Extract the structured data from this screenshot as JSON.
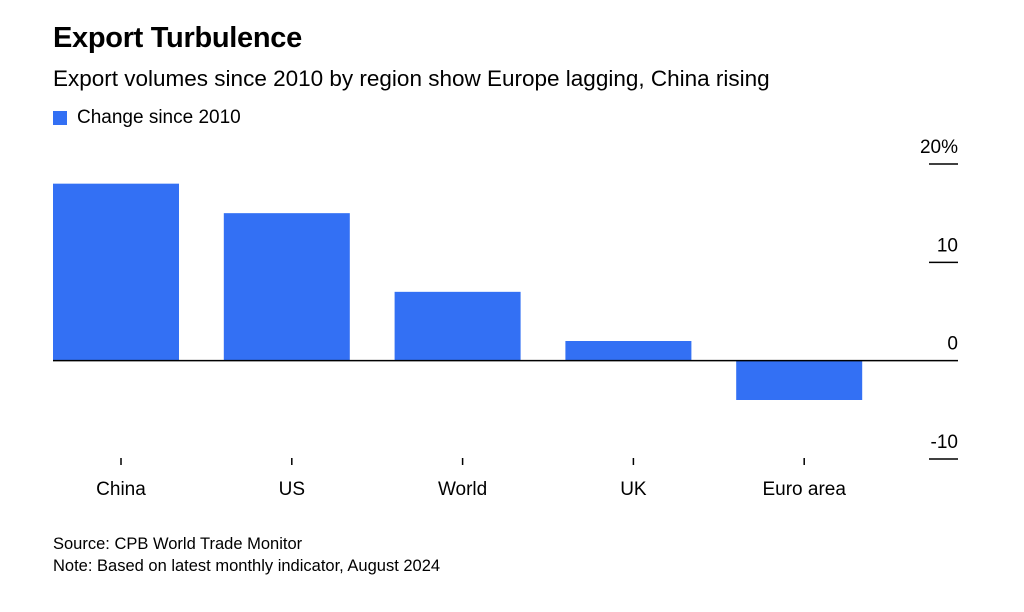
{
  "title": "Export Turbulence",
  "subtitle": "Export volumes since 2010 by region show Europe lagging, China rising",
  "legend": {
    "label": "Change since 2010"
  },
  "colors": {
    "bar": "#3370f4",
    "axis": "#000000",
    "text": "#000000"
  },
  "chart_data": {
    "type": "bar",
    "categories": [
      "China",
      "US",
      "World",
      "UK",
      "Euro area"
    ],
    "series": [
      {
        "name": "Change since 2010",
        "values": [
          18.0,
          15.0,
          7.0,
          2.0,
          -4.0
        ]
      }
    ],
    "ylim": [
      -10,
      20
    ],
    "yticks": [
      20,
      10,
      0,
      -10
    ],
    "ytick_labels": [
      "20%",
      "10",
      "0",
      "-10"
    ],
    "y_axis_side": "right",
    "grid": false,
    "legend_position": "top-left"
  },
  "footer": {
    "source": "Source: CPB World Trade Monitor",
    "note": "Note: Based on latest monthly indicator, August 2024"
  }
}
